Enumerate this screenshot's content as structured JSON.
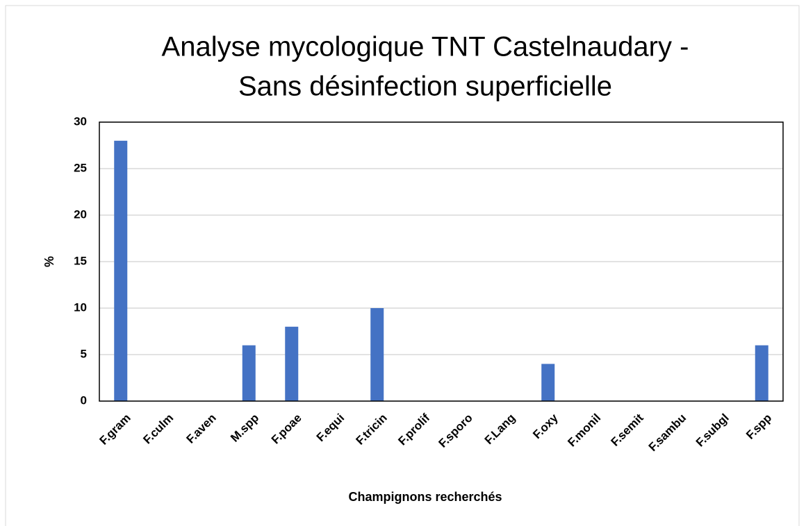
{
  "chart_data": {
    "type": "bar",
    "title": [
      "Analyse mycologique TNT Castelnaudary -",
      "Sans désinfection superficielle"
    ],
    "x_label": "Champignons recherchés",
    "y_label": "%",
    "categories": [
      "F.gram",
      "F.culm",
      "F.aven",
      "M.spp",
      "F.poae",
      "F.equi",
      "F.tricin",
      "F.prolif",
      "F.sporo",
      "F.Lang",
      "F.oxy",
      "F.monil",
      "F.semit",
      "F.sambu",
      "F.subgl",
      "F.spp"
    ],
    "values": [
      28,
      0,
      0,
      6,
      8,
      0,
      10,
      0,
      0,
      0,
      4,
      0,
      0,
      0,
      0,
      6
    ],
    "color": "#4472c4",
    "ylim": [
      0,
      30
    ],
    "yticks": [
      0,
      5,
      10,
      15,
      20,
      25,
      30
    ],
    "grid": true
  }
}
